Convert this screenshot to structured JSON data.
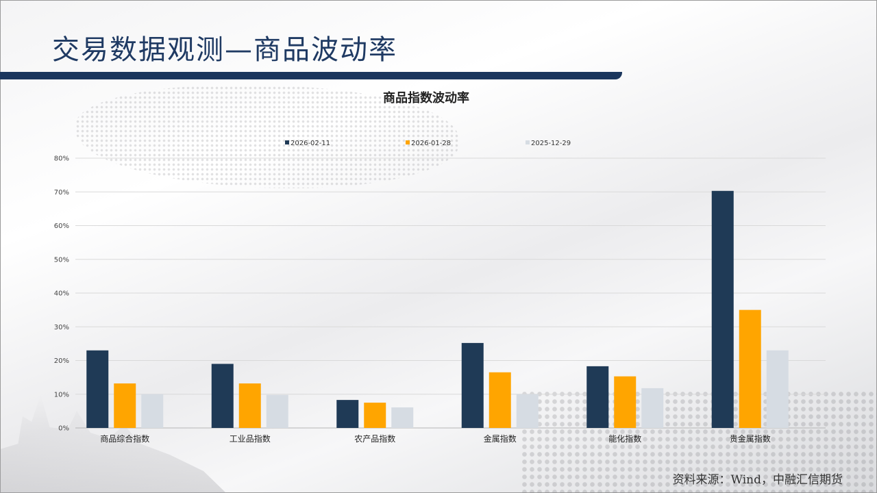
{
  "slide": {
    "title": "交易数据观测—商品波动率",
    "source": "资料来源：Wind，中融汇信期货"
  },
  "colors": {
    "title_text": "#1f3a63",
    "title_bar": "#1b365d",
    "series": [
      "#1f3a56",
      "#ffa500",
      "#d6dce3"
    ]
  },
  "chart_data": {
    "type": "bar",
    "title": "商品指数波动率",
    "categories": [
      "商品综合指数",
      "工业品指数",
      "农产品指数",
      "金属指数",
      "能化指数",
      "贵金属指数"
    ],
    "series": [
      {
        "name": "2026-02-11",
        "values": [
          23,
          19,
          8.3,
          25.2,
          18.3,
          70.3
        ]
      },
      {
        "name": "2026-01-28",
        "values": [
          13.2,
          13.2,
          7.5,
          16.5,
          15.3,
          35
        ]
      },
      {
        "name": "2025-12-29",
        "values": [
          10,
          9.8,
          6.1,
          10,
          11.8,
          23
        ]
      }
    ],
    "y_ticks": [
      "0%",
      "10%",
      "20%",
      "30%",
      "40%",
      "50%",
      "60%",
      "70%",
      "80%"
    ],
    "ylim": [
      0,
      80
    ],
    "yunit": "%",
    "grid": true,
    "legend_position": "top"
  }
}
